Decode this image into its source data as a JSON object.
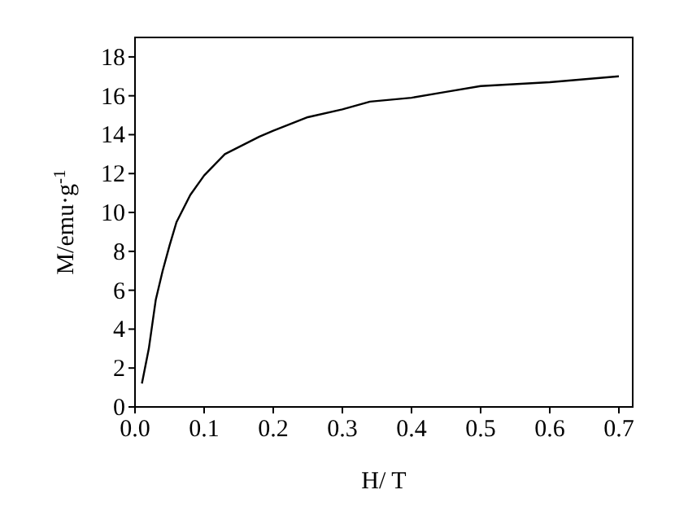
{
  "chart_data": {
    "type": "line",
    "xlabel": "H/ T",
    "ylabel": "M/emu·g$^{-1}$",
    "x": [
      0.01,
      0.02,
      0.03,
      0.04,
      0.05,
      0.06,
      0.08,
      0.1,
      0.13,
      0.18,
      0.2,
      0.25,
      0.3,
      0.34,
      0.4,
      0.45,
      0.5,
      0.6,
      0.7
    ],
    "series": [
      {
        "color": "#000000",
        "values": [
          1.2,
          3,
          5.5,
          7,
          8.3,
          9.5,
          10.9,
          11.9,
          13,
          13.9,
          14.2,
          14.9,
          15.3,
          15.7,
          15.9,
          16.2,
          16.5,
          16.7,
          17.0
        ]
      }
    ],
    "xlim": [
      0,
      0.72
    ],
    "xticks": [
      {
        "value": 0,
        "label": "0.0"
      },
      0.1,
      0.2,
      0.3,
      0.4,
      0.5,
      0.6,
      0.7
    ],
    "ylim": [
      0,
      19
    ],
    "yticks": [
      0,
      2,
      4,
      6,
      8,
      10,
      12,
      14,
      16,
      18
    ],
    "grid": false,
    "marker": "none",
    "line_style": "solid"
  }
}
